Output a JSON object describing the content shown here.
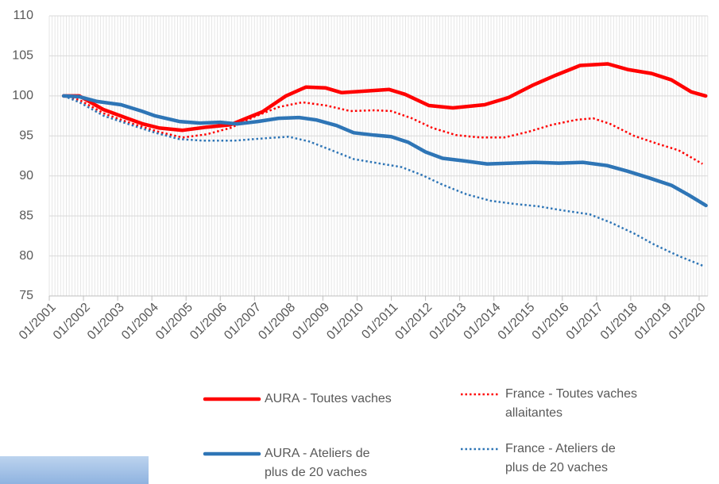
{
  "chart_data": {
    "type": "line",
    "xlim": [
      2001,
      2020.25
    ],
    "xticks": [
      {
        "value": 2001,
        "label": "01/2001"
      },
      {
        "value": 2002,
        "label": "01/2002"
      },
      {
        "value": 2003,
        "label": "01/2003"
      },
      {
        "value": 2004,
        "label": "01/2004"
      },
      {
        "value": 2005,
        "label": "01/2005"
      },
      {
        "value": 2006,
        "label": "01/2006"
      },
      {
        "value": 2007,
        "label": "01/2007"
      },
      {
        "value": 2008,
        "label": "01/2008"
      },
      {
        "value": 2009,
        "label": "01/2009"
      },
      {
        "value": 2010,
        "label": "01/2010"
      },
      {
        "value": 2011,
        "label": "01/2011"
      },
      {
        "value": 2012,
        "label": "01/2012"
      },
      {
        "value": 2013,
        "label": "01/2013"
      },
      {
        "value": 2014,
        "label": "01/2014"
      },
      {
        "value": 2015,
        "label": "01/2015"
      },
      {
        "value": 2016,
        "label": "01/2016"
      },
      {
        "value": 2017,
        "label": "01/2017"
      },
      {
        "value": 2018,
        "label": "01/2018"
      },
      {
        "value": 2019,
        "label": "01/2019"
      },
      {
        "value": 2020,
        "label": "01/2020"
      }
    ],
    "ylim": [
      75,
      110
    ],
    "yticks": [
      75,
      80,
      85,
      90,
      95,
      100,
      105,
      110
    ],
    "grid": true,
    "minor_x_grid": true,
    "series": [
      {
        "name": "AURA - Toutes vaches",
        "color": "#ff0000",
        "dash": "solid",
        "x": [
          2001.42,
          2001.88,
          2002.58,
          2003.28,
          2003.74,
          2004.2,
          2004.9,
          2005.6,
          2006.3,
          2006.76,
          2007.23,
          2007.92,
          2008.5,
          2009.08,
          2009.55,
          2010.25,
          2010.94,
          2011.4,
          2012.1,
          2012.8,
          2013.73,
          2014.43,
          2015.12,
          2015.82,
          2016.52,
          2017.33,
          2017.91,
          2018.61,
          2019.19,
          2019.77,
          2020.19
        ],
        "values": [
          100,
          100,
          98.3,
          97.2,
          96.5,
          96,
          95.7,
          96.1,
          96.4,
          97.2,
          98,
          100,
          101.1,
          101,
          100.4,
          100.6,
          100.8,
          100.2,
          98.8,
          98.5,
          98.9,
          99.8,
          101.3,
          102.6,
          103.8,
          104,
          103.3,
          102.8,
          102,
          100.5,
          100
        ]
      },
      {
        "name": "France - Toutes vaches allaitantes",
        "color": "#ff0000",
        "dash": "dotted",
        "x": [
          2001.42,
          2001.88,
          2002.6,
          2003.3,
          2004.2,
          2004.9,
          2005.6,
          2006.3,
          2007,
          2007.7,
          2008.4,
          2009.1,
          2009.8,
          2010.5,
          2011,
          2011.6,
          2012.2,
          2012.9,
          2013.6,
          2014.3,
          2015,
          2015.7,
          2016.4,
          2016.9,
          2017.4,
          2018.1,
          2018.8,
          2019.4,
          2020.1
        ],
        "values": [
          100,
          99.5,
          97.8,
          96.7,
          95.5,
          94.8,
          95.2,
          96,
          97.4,
          98.6,
          99.2,
          98.8,
          98.1,
          98.2,
          98.1,
          97.2,
          96,
          95.1,
          94.8,
          94.8,
          95.5,
          96.4,
          97,
          97.2,
          96.5,
          95,
          94,
          93.2,
          91.5
        ]
      },
      {
        "name": "AURA - Ateliers de plus de 20 vaches",
        "color": "#2e75b6",
        "dash": "solid",
        "x": [
          2001.42,
          2001.88,
          2002.4,
          2003.1,
          2003.7,
          2004.1,
          2004.8,
          2005.4,
          2006,
          2006.5,
          2007.1,
          2007.7,
          2008.3,
          2008.8,
          2009.4,
          2009.9,
          2010.5,
          2011,
          2011.5,
          2012,
          2012.5,
          2013.1,
          2013.8,
          2014.5,
          2015.2,
          2015.9,
          2016.6,
          2017.3,
          2017.9,
          2018.5,
          2019.2,
          2019.7,
          2020.2
        ],
        "values": [
          100,
          99.9,
          99.3,
          98.9,
          98.1,
          97.5,
          96.8,
          96.6,
          96.7,
          96.5,
          96.8,
          97.2,
          97.3,
          97,
          96.3,
          95.4,
          95.1,
          94.9,
          94.2,
          93,
          92.2,
          91.9,
          91.5,
          91.6,
          91.7,
          91.6,
          91.7,
          91.3,
          90.6,
          89.8,
          88.8,
          87.6,
          86.3
        ]
      },
      {
        "name": "France - Ateliers de plus de 20 vaches",
        "color": "#2e75b6",
        "dash": "dotted",
        "x": [
          2001.42,
          2001.88,
          2002.6,
          2003.3,
          2004.1,
          2004.8,
          2005.5,
          2006.4,
          2007.3,
          2008,
          2008.6,
          2009.2,
          2009.9,
          2010.6,
          2011.3,
          2011.9,
          2012.5,
          2013.2,
          2013.9,
          2014.6,
          2015.3,
          2016,
          2016.8,
          2017.4,
          2018.1,
          2018.7,
          2019.4,
          2020.15
        ],
        "values": [
          100,
          99.2,
          97.5,
          96.5,
          95.4,
          94.6,
          94.4,
          94.4,
          94.7,
          94.9,
          94.3,
          93.3,
          92.1,
          91.6,
          91.1,
          90.1,
          88.9,
          87.7,
          86.9,
          86.5,
          86.2,
          85.7,
          85.2,
          84.2,
          82.8,
          81.4,
          80,
          78.7
        ]
      }
    ]
  }
}
